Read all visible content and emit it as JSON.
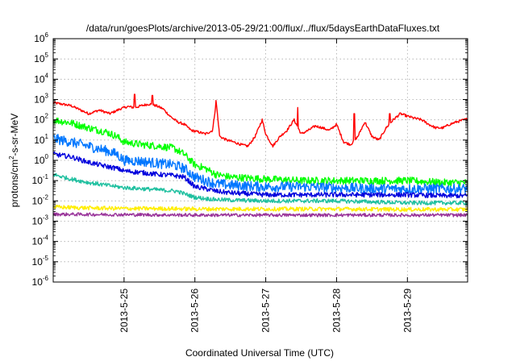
{
  "chart_data": {
    "type": "line",
    "title": "/data/run/goesPlots/archive/2013-05-29/21:00/flux/../flux/5daysEarthDataFluxes.txt",
    "xlabel": "Coordinated Universal Time (UTC)",
    "ylabel": {
      "base": "protons/cm",
      "sup": "2",
      "rest": "-s-sr-MeV"
    },
    "yscale": "log",
    "ylim": [
      1e-06,
      1000000.0
    ],
    "xlim": [
      0,
      5.85
    ],
    "grid": true,
    "legend": "none",
    "y_ticks": [
      {
        "exp": -6,
        "base": "10",
        "sup": "-6"
      },
      {
        "exp": -5,
        "base": "10",
        "sup": "-5"
      },
      {
        "exp": -4,
        "base": "10",
        "sup": "-4"
      },
      {
        "exp": -3,
        "base": "10",
        "sup": "-3"
      },
      {
        "exp": -2,
        "base": "10",
        "sup": "-2"
      },
      {
        "exp": -1,
        "base": "10",
        "sup": "-1"
      },
      {
        "exp": 0,
        "base": "10",
        "sup": "0"
      },
      {
        "exp": 1,
        "base": "10",
        "sup": "1"
      },
      {
        "exp": 2,
        "base": "10",
        "sup": "2"
      },
      {
        "exp": 3,
        "base": "10",
        "sup": "3"
      },
      {
        "exp": 4,
        "base": "10",
        "sup": "4"
      },
      {
        "exp": 5,
        "base": "10",
        "sup": "5"
      },
      {
        "exp": 6,
        "base": "10",
        "sup": "6"
      }
    ],
    "x_ticks": [
      {
        "x": 1,
        "label": "2013-5-25"
      },
      {
        "x": 2,
        "label": "2013-5-26"
      },
      {
        "x": 3,
        "label": "2013-5-27"
      },
      {
        "x": 4,
        "label": "2013-5-28"
      },
      {
        "x": 5,
        "label": "2013-5-29"
      }
    ],
    "series": [
      {
        "color": "#ff0000",
        "noise": 0.06,
        "points": [
          [
            0,
            700
          ],
          [
            0.25,
            500
          ],
          [
            0.5,
            200
          ],
          [
            0.65,
            300
          ],
          [
            0.8,
            200
          ],
          [
            0.95,
            350
          ],
          [
            1.05,
            450
          ],
          [
            1.15,
            400
          ],
          [
            1.25,
            500
          ],
          [
            1.35,
            600
          ],
          [
            1.45,
            500
          ],
          [
            1.55,
            350
          ],
          [
            1.65,
            150
          ],
          [
            1.75,
            80
          ],
          [
            1.85,
            60
          ],
          [
            1.95,
            30
          ],
          [
            2.05,
            25
          ],
          [
            2.15,
            20
          ],
          [
            2.25,
            30
          ],
          [
            2.3,
            800
          ],
          [
            2.35,
            15
          ],
          [
            2.45,
            10
          ],
          [
            2.55,
            8
          ],
          [
            2.65,
            6
          ],
          [
            2.75,
            5
          ],
          [
            2.85,
            15
          ],
          [
            2.95,
            100
          ],
          [
            3.0,
            20
          ],
          [
            3.1,
            5
          ],
          [
            3.2,
            15
          ],
          [
            3.3,
            30
          ],
          [
            3.4,
            100
          ],
          [
            3.5,
            20
          ],
          [
            3.6,
            30
          ],
          [
            3.7,
            50
          ],
          [
            3.8,
            40
          ],
          [
            3.9,
            30
          ],
          [
            4.0,
            60
          ],
          [
            4.1,
            8
          ],
          [
            4.2,
            6
          ],
          [
            4.3,
            15
          ],
          [
            4.4,
            80
          ],
          [
            4.5,
            15
          ],
          [
            4.6,
            10
          ],
          [
            4.7,
            40
          ],
          [
            4.8,
            100
          ],
          [
            4.9,
            200
          ],
          [
            5.0,
            150
          ],
          [
            5.1,
            120
          ],
          [
            5.2,
            100
          ],
          [
            5.3,
            60
          ],
          [
            5.4,
            40
          ],
          [
            5.5,
            40
          ],
          [
            5.6,
            60
          ],
          [
            5.7,
            80
          ],
          [
            5.85,
            110
          ]
        ],
        "spikes": [
          [
            1.15,
            1800
          ],
          [
            1.4,
            1600
          ],
          [
            2.3,
            900
          ],
          [
            3.45,
            400
          ],
          [
            4.25,
            200
          ],
          [
            4.75,
            200
          ]
        ]
      },
      {
        "color": "#00ff00",
        "noise": 0.18,
        "points": [
          [
            0,
            100
          ],
          [
            0.25,
            70
          ],
          [
            0.5,
            40
          ],
          [
            0.75,
            25
          ],
          [
            0.9,
            15
          ],
          [
            1.0,
            8
          ],
          [
            1.25,
            6
          ],
          [
            1.5,
            5
          ],
          [
            1.7,
            4
          ],
          [
            1.85,
            2
          ],
          [
            2.0,
            0.6
          ],
          [
            2.15,
            0.4
          ],
          [
            2.3,
            0.2
          ],
          [
            2.5,
            0.15
          ],
          [
            3.0,
            0.12
          ],
          [
            3.5,
            0.1
          ],
          [
            4.0,
            0.1
          ],
          [
            4.5,
            0.1
          ],
          [
            5.0,
            0.1
          ],
          [
            5.5,
            0.08
          ],
          [
            5.85,
            0.08
          ]
        ],
        "spikes": []
      },
      {
        "color": "#0077ff",
        "noise": 0.25,
        "points": [
          [
            0,
            12
          ],
          [
            0.25,
            8
          ],
          [
            0.5,
            5
          ],
          [
            0.75,
            3
          ],
          [
            0.9,
            2
          ],
          [
            1.0,
            1
          ],
          [
            1.25,
            0.9
          ],
          [
            1.5,
            0.7
          ],
          [
            1.7,
            0.6
          ],
          [
            1.85,
            0.4
          ],
          [
            2.0,
            0.15
          ],
          [
            2.15,
            0.1
          ],
          [
            2.3,
            0.07
          ],
          [
            2.5,
            0.06
          ],
          [
            3.0,
            0.05
          ],
          [
            3.5,
            0.05
          ],
          [
            4.0,
            0.045
          ],
          [
            4.5,
            0.04
          ],
          [
            5.0,
            0.04
          ],
          [
            5.5,
            0.04
          ],
          [
            5.85,
            0.04
          ]
        ],
        "spikes": []
      },
      {
        "color": "#0000dd",
        "noise": 0.12,
        "points": [
          [
            0,
            2
          ],
          [
            0.25,
            1.5
          ],
          [
            0.5,
            0.8
          ],
          [
            0.75,
            0.5
          ],
          [
            0.9,
            0.4
          ],
          [
            1.0,
            0.3
          ],
          [
            1.25,
            0.25
          ],
          [
            1.5,
            0.2
          ],
          [
            1.7,
            0.18
          ],
          [
            1.85,
            0.15
          ],
          [
            2.0,
            0.05
          ],
          [
            2.15,
            0.04
          ],
          [
            2.3,
            0.03
          ],
          [
            2.5,
            0.025
          ],
          [
            3.0,
            0.02
          ],
          [
            3.5,
            0.02
          ],
          [
            4.0,
            0.02
          ],
          [
            4.5,
            0.02
          ],
          [
            5.0,
            0.02
          ],
          [
            5.5,
            0.018
          ],
          [
            5.85,
            0.018
          ]
        ],
        "spikes": []
      },
      {
        "color": "#20c0a0",
        "noise": 0.1,
        "points": [
          [
            0,
            0.2
          ],
          [
            0.25,
            0.12
          ],
          [
            0.5,
            0.08
          ],
          [
            0.75,
            0.06
          ],
          [
            1.0,
            0.045
          ],
          [
            1.25,
            0.04
          ],
          [
            1.5,
            0.035
          ],
          [
            1.75,
            0.03
          ],
          [
            2.0,
            0.015
          ],
          [
            2.25,
            0.012
          ],
          [
            2.5,
            0.011
          ],
          [
            3.0,
            0.01
          ],
          [
            3.5,
            0.01
          ],
          [
            4.0,
            0.01
          ],
          [
            4.5,
            0.009
          ],
          [
            5.0,
            0.008
          ],
          [
            5.5,
            0.008
          ],
          [
            5.85,
            0.008
          ]
        ],
        "spikes": []
      },
      {
        "color": "#ffee00",
        "noise": 0.1,
        "points": [
          [
            0,
            0.005
          ],
          [
            0.5,
            0.0045
          ],
          [
            1.0,
            0.0042
          ],
          [
            1.5,
            0.0042
          ],
          [
            2.0,
            0.004
          ],
          [
            3.0,
            0.004
          ],
          [
            4.0,
            0.004
          ],
          [
            5.0,
            0.0038
          ],
          [
            5.85,
            0.0038
          ]
        ],
        "spikes": []
      },
      {
        "color": "#993399",
        "noise": 0.08,
        "points": [
          [
            0,
            0.0022
          ],
          [
            1.0,
            0.0021
          ],
          [
            2.0,
            0.002
          ],
          [
            3.0,
            0.002
          ],
          [
            4.0,
            0.002
          ],
          [
            5.0,
            0.002
          ],
          [
            5.85,
            0.002
          ]
        ],
        "spikes": []
      }
    ]
  }
}
